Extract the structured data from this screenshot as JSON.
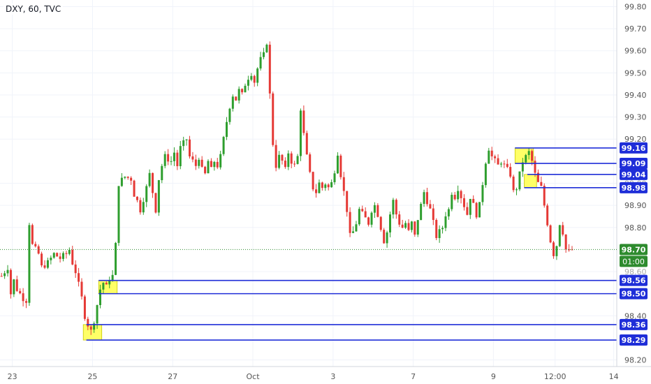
{
  "header": {
    "symbol_label": "DXY, 60, TVC"
  },
  "colors": {
    "up": "#2e9e2e",
    "down": "#e53935",
    "level_line": "#1f2ed8",
    "zone_fill": "#ffff66",
    "price_label_bg": "#1f2ed8",
    "last_price_bg": "#2e8b2e",
    "axis_text": "#555555",
    "grid": "#f0f3fa"
  },
  "chart_data": {
    "type": "candlestick",
    "symbol": "DXY",
    "interval": "60",
    "source": "TVC",
    "ylim": [
      98.17,
      99.83
    ],
    "y_ticks": [
      "99.80",
      "99.70",
      "99.60",
      "99.50",
      "99.40",
      "99.30",
      "99.20",
      "98.90",
      "98.80",
      "98.40",
      "98.20"
    ],
    "partially_hidden_y_ticks": [
      "99.00",
      "98.60"
    ],
    "x_ticks": [
      {
        "label": "23",
        "t": 4
      },
      {
        "label": "25",
        "t": 30
      },
      {
        "label": "27",
        "t": 56
      },
      {
        "label": "Oct",
        "t": 82
      },
      {
        "label": "3",
        "t": 108
      },
      {
        "label": "7",
        "t": 134
      },
      {
        "label": "9",
        "t": 160
      },
      {
        "label": "12:00",
        "t": 180
      },
      {
        "label": "14",
        "t": 199
      }
    ],
    "last_price": {
      "value": "98.70",
      "countdown": "01:00"
    },
    "levels": [
      {
        "value": 99.16,
        "label": "99.16"
      },
      {
        "value": 99.09,
        "label": "99.09"
      },
      {
        "value": 99.04,
        "label": "99.04"
      },
      {
        "value": 98.98,
        "label": "98.98"
      },
      {
        "value": 98.56,
        "label": "98.56"
      },
      {
        "value": 98.5,
        "label": "98.50"
      },
      {
        "value": 98.36,
        "label": "98.36"
      },
      {
        "value": 98.29,
        "label": "98.29"
      }
    ],
    "zones": [
      {
        "t_start": 27,
        "t_end": 33,
        "low": 98.29,
        "high": 98.36
      },
      {
        "t_start": 32,
        "t_end": 38,
        "low": 98.5,
        "high": 98.56
      },
      {
        "t_start": 167,
        "t_end": 173,
        "low": 99.09,
        "high": 99.16
      },
      {
        "t_start": 170,
        "t_end": 174,
        "low": 98.98,
        "high": 99.04
      }
    ],
    "path": [
      [
        0,
        98.58
      ],
      [
        2,
        98.62
      ],
      [
        3,
        98.5
      ],
      [
        4,
        98.56
      ],
      [
        5,
        98.52
      ],
      [
        7,
        98.48
      ],
      [
        8,
        98.47
      ],
      [
        9,
        98.82
      ],
      [
        10,
        98.72
      ],
      [
        12,
        98.68
      ],
      [
        13,
        98.62
      ],
      [
        15,
        98.64
      ],
      [
        17,
        98.68
      ],
      [
        19,
        98.66
      ],
      [
        21,
        98.68
      ],
      [
        22,
        98.7
      ],
      [
        23,
        98.64
      ],
      [
        24,
        98.6
      ],
      [
        26,
        98.48
      ],
      [
        27,
        98.4
      ],
      [
        28,
        98.36
      ],
      [
        29,
        98.33
      ],
      [
        30,
        98.38
      ],
      [
        31,
        98.45
      ],
      [
        32,
        98.52
      ],
      [
        33,
        98.55
      ],
      [
        34,
        98.53
      ],
      [
        35,
        98.57
      ],
      [
        36,
        98.58
      ],
      [
        37,
        98.72
      ],
      [
        38,
        99.0
      ],
      [
        40,
        99.03
      ],
      [
        42,
        99.02
      ],
      [
        43,
        98.95
      ],
      [
        44,
        98.92
      ],
      [
        45,
        98.88
      ],
      [
        47,
        98.98
      ],
      [
        48,
        99.04
      ],
      [
        49,
        98.96
      ],
      [
        50,
        98.88
      ],
      [
        51,
        99.02
      ],
      [
        52,
        99.08
      ],
      [
        53,
        99.12
      ],
      [
        55,
        99.1
      ],
      [
        56,
        99.14
      ],
      [
        57,
        99.08
      ],
      [
        58,
        99.16
      ],
      [
        60,
        99.2
      ],
      [
        61,
        99.12
      ],
      [
        62,
        99.1
      ],
      [
        63,
        99.08
      ],
      [
        64,
        99.12
      ],
      [
        65,
        99.06
      ],
      [
        66,
        99.04
      ],
      [
        67,
        99.1
      ],
      [
        68,
        99.06
      ],
      [
        69,
        99.1
      ],
      [
        70,
        99.08
      ],
      [
        71,
        99.12
      ],
      [
        72,
        99.2
      ],
      [
        73,
        99.28
      ],
      [
        74,
        99.35
      ],
      [
        75,
        99.4
      ],
      [
        76,
        99.38
      ],
      [
        77,
        99.42
      ],
      [
        78,
        99.4
      ],
      [
        79,
        99.45
      ],
      [
        80,
        99.48
      ],
      [
        81,
        99.5
      ],
      [
        82,
        99.46
      ],
      [
        83,
        99.52
      ],
      [
        84,
        99.56
      ],
      [
        85,
        99.58
      ],
      [
        86,
        99.64
      ],
      [
        87,
        99.4
      ],
      [
        88,
        99.18
      ],
      [
        89,
        99.08
      ],
      [
        90,
        99.12
      ],
      [
        91,
        99.1
      ],
      [
        92,
        99.06
      ],
      [
        93,
        99.14
      ],
      [
        94,
        99.1
      ],
      [
        95,
        99.08
      ],
      [
        96,
        99.12
      ],
      [
        97,
        99.34
      ],
      [
        98,
        99.22
      ],
      [
        99,
        99.12
      ],
      [
        100,
        99.04
      ],
      [
        101,
        98.98
      ],
      [
        102,
        98.96
      ],
      [
        103,
        99.0
      ],
      [
        104,
        98.98
      ],
      [
        105,
        99.0
      ],
      [
        106,
        98.98
      ],
      [
        107,
        99.0
      ],
      [
        108,
        99.06
      ],
      [
        109,
        99.14
      ],
      [
        110,
        99.04
      ],
      [
        111,
        98.96
      ],
      [
        112,
        98.88
      ],
      [
        113,
        98.76
      ],
      [
        114,
        98.78
      ],
      [
        115,
        98.82
      ],
      [
        116,
        98.88
      ],
      [
        117,
        98.86
      ],
      [
        118,
        98.84
      ],
      [
        119,
        98.82
      ],
      [
        120,
        98.88
      ],
      [
        121,
        98.9
      ],
      [
        122,
        98.86
      ],
      [
        123,
        98.8
      ],
      [
        124,
        98.74
      ],
      [
        125,
        98.78
      ],
      [
        126,
        98.86
      ],
      [
        127,
        98.92
      ],
      [
        128,
        98.86
      ],
      [
        129,
        98.82
      ],
      [
        130,
        98.8
      ],
      [
        131,
        98.82
      ],
      [
        132,
        98.78
      ],
      [
        133,
        98.82
      ],
      [
        134,
        98.76
      ],
      [
        135,
        98.84
      ],
      [
        136,
        98.9
      ],
      [
        137,
        98.96
      ],
      [
        138,
        98.92
      ],
      [
        139,
        98.88
      ],
      [
        140,
        98.82
      ],
      [
        141,
        98.76
      ],
      [
        142,
        98.78
      ],
      [
        143,
        98.8
      ],
      [
        144,
        98.86
      ],
      [
        145,
        98.88
      ],
      [
        146,
        98.96
      ],
      [
        147,
        98.94
      ],
      [
        148,
        98.98
      ],
      [
        149,
        98.94
      ],
      [
        150,
        98.9
      ],
      [
        151,
        98.86
      ],
      [
        152,
        98.94
      ],
      [
        153,
        98.9
      ],
      [
        154,
        98.86
      ],
      [
        155,
        98.9
      ],
      [
        156,
        99.0
      ],
      [
        157,
        99.1
      ],
      [
        158,
        99.16
      ],
      [
        159,
        99.12
      ],
      [
        160,
        99.1
      ],
      [
        161,
        99.08
      ],
      [
        162,
        99.1
      ],
      [
        163,
        99.08
      ],
      [
        164,
        99.06
      ],
      [
        165,
        99.04
      ],
      [
        166,
        98.96
      ],
      [
        167,
        98.98
      ],
      [
        168,
        99.04
      ],
      [
        169,
        99.1
      ],
      [
        170,
        99.12
      ],
      [
        171,
        99.14
      ],
      [
        172,
        99.1
      ],
      [
        173,
        99.04
      ],
      [
        174,
        99.0
      ],
      [
        175,
        98.98
      ],
      [
        176,
        98.9
      ],
      [
        177,
        98.82
      ],
      [
        178,
        98.74
      ],
      [
        179,
        98.68
      ],
      [
        180,
        98.72
      ],
      [
        181,
        98.82
      ],
      [
        182,
        98.78
      ],
      [
        183,
        98.7
      ],
      [
        184,
        98.69
      ],
      [
        185,
        98.7
      ]
    ]
  }
}
